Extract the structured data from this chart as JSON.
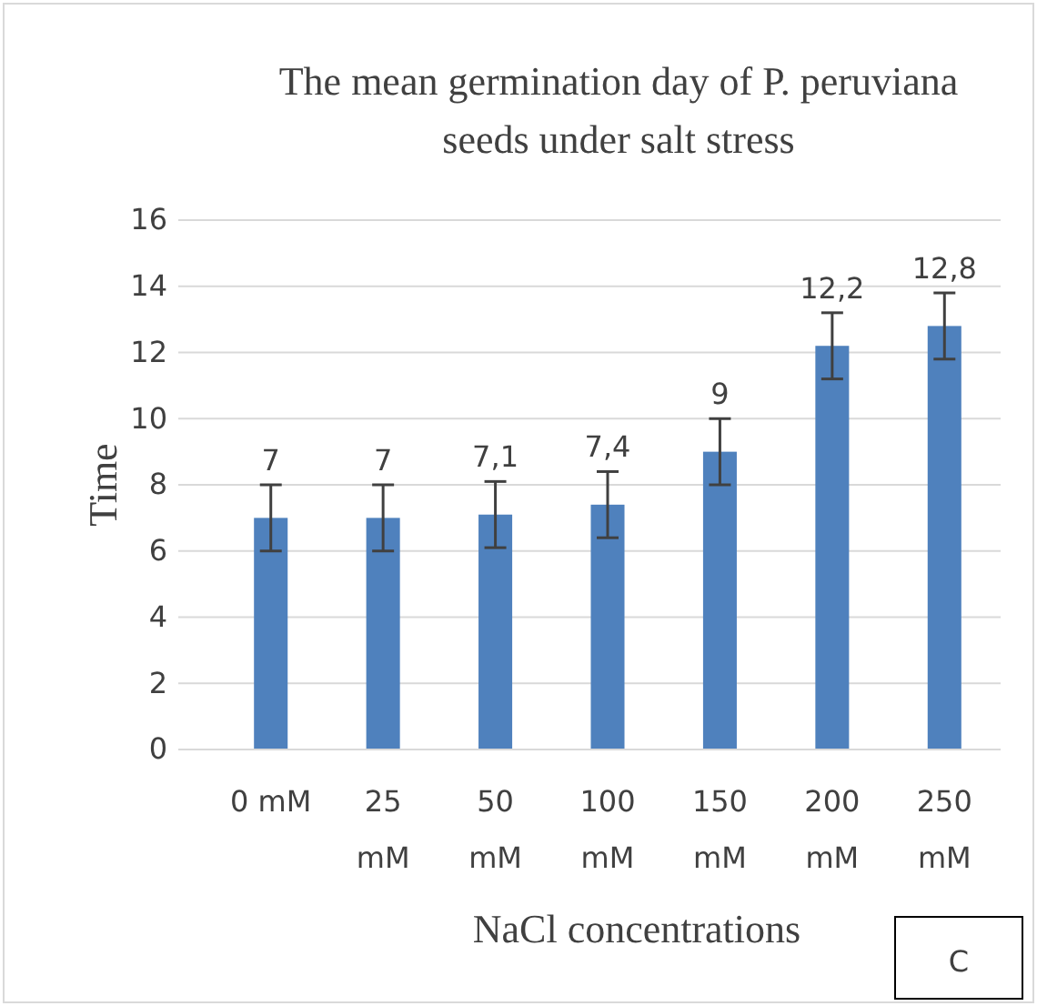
{
  "chart_data": {
    "type": "bar",
    "title": "The mean germination day of P. peruviana seeds under salt stress",
    "xlabel": "NaCl concentrations",
    "ylabel": "Time",
    "categories": [
      "0 mM",
      "25 mM",
      "50 mM",
      "100 mM",
      "150 mM",
      "200 mM",
      "250 mM"
    ],
    "values": [
      7,
      7,
      7.1,
      7.4,
      9,
      12.2,
      12.8
    ],
    "errors": [
      1,
      1,
      1,
      1,
      1,
      1,
      1
    ],
    "value_labels": [
      "7",
      "7",
      "7,1",
      "7,4",
      "9",
      "12,2",
      "12,8"
    ],
    "color": "#4f81bd",
    "ylim": [
      0,
      16
    ],
    "yticks": [
      0,
      2,
      4,
      6,
      8,
      10,
      12,
      14,
      16
    ],
    "grid": "y",
    "annotations": [
      "C"
    ]
  }
}
